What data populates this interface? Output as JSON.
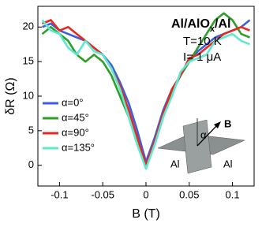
{
  "chart_data": {
    "type": "line",
    "title": [
      "Al/AlO",
      "x",
      "/Al"
    ],
    "annotations": [
      "T=10 K",
      "I= 1 μA"
    ],
    "x_label": "B (T)",
    "y_label": "δR (Ω)",
    "x": [
      -0.12,
      -0.11,
      -0.1,
      -0.09,
      -0.08,
      -0.07,
      -0.06,
      -0.05,
      -0.04,
      -0.03,
      -0.02,
      -0.01,
      0,
      0.01,
      0.02,
      0.03,
      0.04,
      0.05,
      0.06,
      0.07,
      0.08,
      0.09,
      0.1,
      0.11,
      0.12
    ],
    "series": [
      {
        "name": "α=0°",
        "color": "#3a5fe0",
        "values": [
          20,
          20.5,
          19.5,
          19,
          18.5,
          18,
          17,
          16,
          14.5,
          12,
          9,
          5,
          0.5,
          4,
          8,
          11,
          13,
          15,
          16.5,
          17.5,
          18.5,
          19,
          19.5,
          20,
          21
        ]
      },
      {
        "name": "α=45°",
        "color": "#2f9e2a",
        "values": [
          19,
          20,
          19,
          18,
          16,
          15,
          16,
          15,
          13,
          10,
          7,
          3,
          0,
          3,
          7,
          10.5,
          13,
          15,
          17,
          19,
          21,
          22,
          21,
          19,
          18.5
        ]
      },
      {
        "name": "α=90°",
        "color": "#e8281e",
        "values": [
          20.5,
          21,
          19.5,
          20,
          19,
          18,
          17,
          16,
          14,
          11.5,
          8,
          4,
          0,
          3.5,
          7.5,
          11,
          13,
          15.5,
          16,
          17,
          18,
          19,
          19.5,
          20,
          19.5
        ]
      },
      {
        "name": "α=135°",
        "color": "#5ee8cf",
        "values": [
          21,
          19.5,
          19,
          17,
          16,
          18,
          16.5,
          16,
          14,
          11,
          7,
          3,
          -0.5,
          3,
          7,
          10,
          13.5,
          15,
          15.5,
          16,
          18,
          18.5,
          19,
          18,
          17.5
        ]
      }
    ],
    "xlim": [
      -0.125,
      0.125
    ],
    "xticks": [
      -0.1,
      -0.05,
      0,
      0.05,
      0.1
    ],
    "ylim": [
      -3,
      23
    ],
    "yticks": [
      0,
      5,
      10,
      15,
      20
    ],
    "inset_labels": [
      "Al",
      "Al",
      "α",
      "B"
    ]
  }
}
